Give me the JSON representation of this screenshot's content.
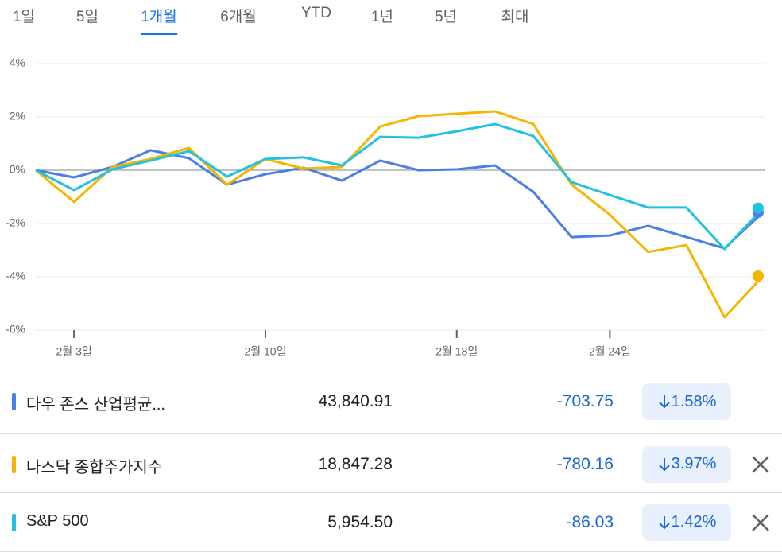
{
  "tabs": [
    "1일",
    "5일",
    "1개월",
    "6개월",
    "YTD",
    "1년",
    "5년",
    "최대"
  ],
  "selected_tab": 2,
  "chart_data": {
    "type": "line",
    "categories": [
      null,
      "2월 3일",
      null,
      null,
      null,
      null,
      "2월 10일",
      null,
      null,
      null,
      null,
      "2월 18일",
      null,
      null,
      null,
      "2월 24일",
      null,
      null,
      null,
      null
    ],
    "series": [
      {
        "name": "다우 존스 산업평균...",
        "color": "#4a7fe8",
        "values": [
          0,
          -0.27,
          0.12,
          0.75,
          0.45,
          -0.54,
          -0.15,
          0.09,
          -0.39,
          0.36,
          0,
          0.03,
          0.18,
          -0.81,
          -2.51,
          -2.45,
          -2.09,
          -2.51,
          -2.93,
          -1.58
        ]
      },
      {
        "name": "나스닥 종합주가지수",
        "color": "#f7b500",
        "values": [
          0,
          -1.19,
          0.12,
          0.42,
          0.84,
          -0.54,
          0.42,
          0.06,
          0.12,
          1.64,
          2.03,
          2.12,
          2.21,
          1.73,
          -0.54,
          -1.67,
          -3.07,
          -2.81,
          -5.52,
          -3.97
        ]
      },
      {
        "name": "S&P 500",
        "color": "#24c1e0",
        "values": [
          0,
          -0.75,
          0.03,
          0.36,
          0.72,
          -0.24,
          0.42,
          0.48,
          0.18,
          1.25,
          1.22,
          1.46,
          1.73,
          1.28,
          -0.45,
          -0.93,
          -1.4,
          -1.4,
          -2.96,
          -1.42
        ]
      }
    ],
    "ylim": [
      -6,
      4
    ],
    "yticks": [
      {
        "value": -6,
        "label": "-6%"
      },
      {
        "value": -4,
        "label": "-4%"
      },
      {
        "value": -2,
        "label": "-2%"
      },
      {
        "value": 0,
        "label": "0%"
      },
      {
        "value": 2,
        "label": "2%"
      },
      {
        "value": 4,
        "label": "4%"
      }
    ],
    "grid": true
  },
  "quotes": [
    {
      "price": "43,840.91",
      "change": "-703.75",
      "change_percent": "1.58%",
      "removable": false
    },
    {
      "price": "18,847.28",
      "change": "-780.16",
      "change_percent": "3.97%",
      "removable": true
    },
    {
      "price": "5,954.50",
      "change": "-86.03",
      "change_percent": "1.42%",
      "removable": true
    }
  ]
}
